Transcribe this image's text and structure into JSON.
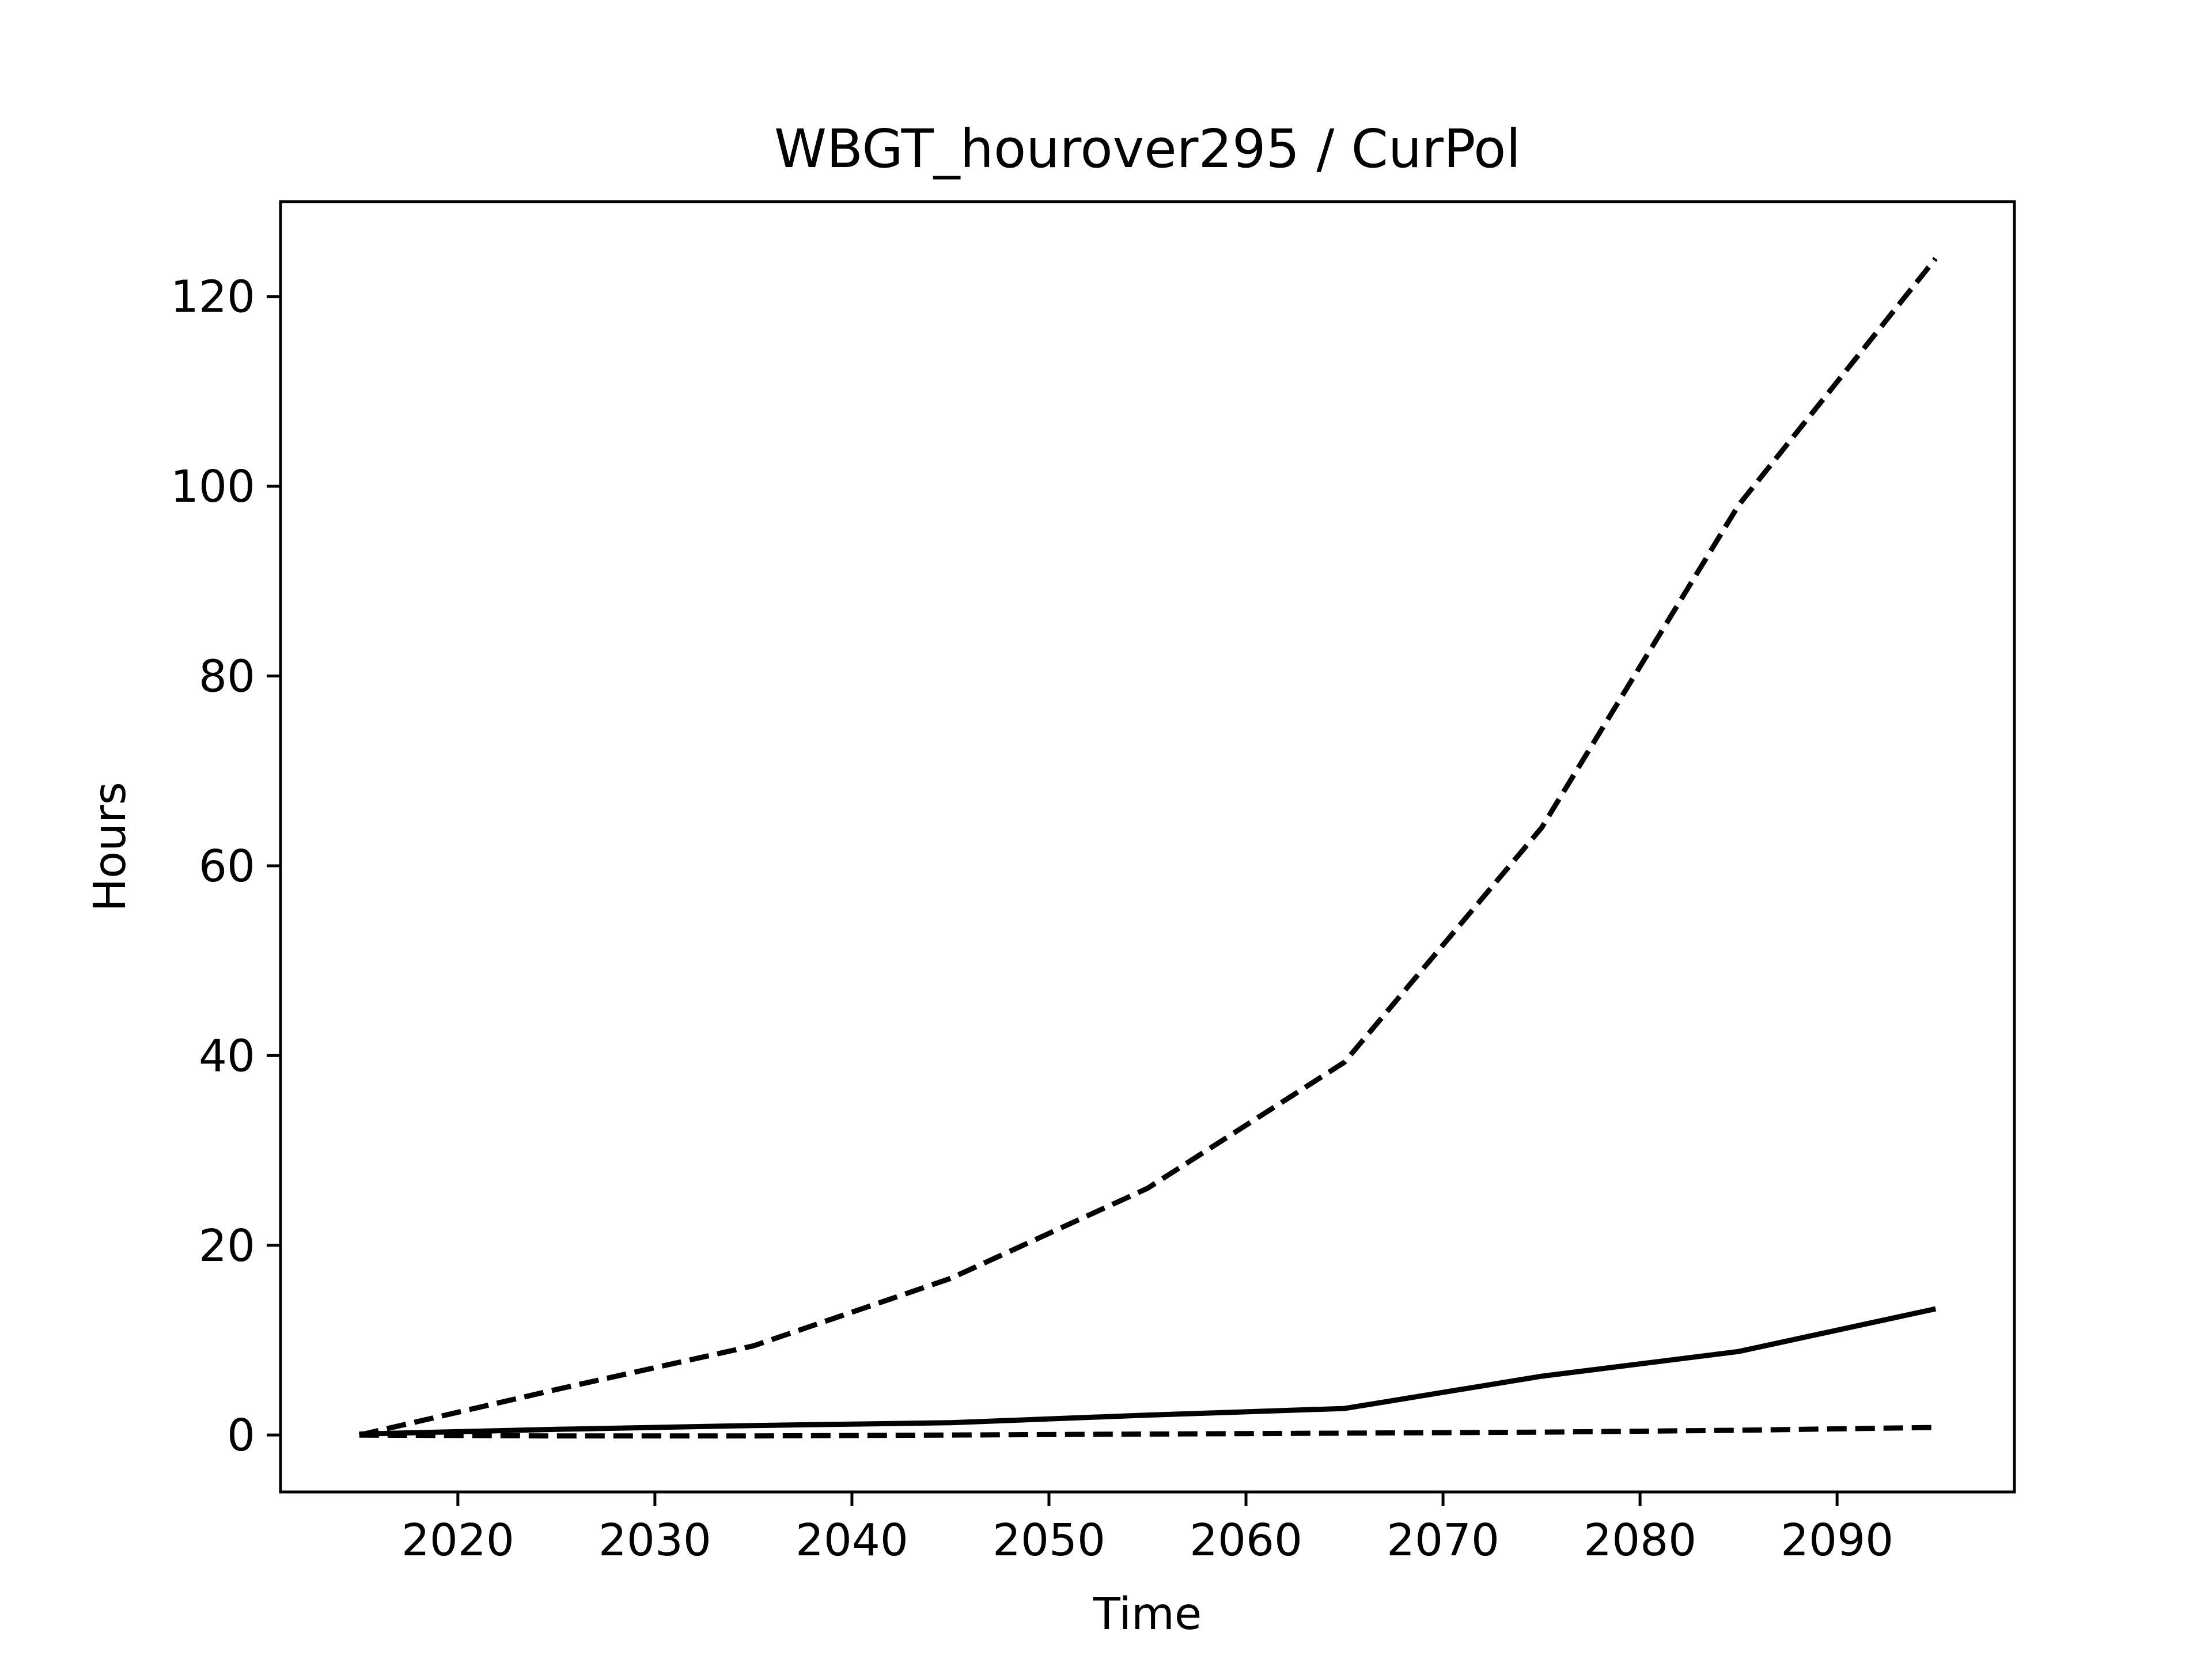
{
  "chart_data": {
    "type": "line",
    "title": "WBGT_hourover295 / CurPol",
    "xlabel": "Time",
    "ylabel": "Hours",
    "xlim": [
      2011,
      2099
    ],
    "ylim": [
      -6,
      130
    ],
    "xticks": [
      2020,
      2030,
      2040,
      2050,
      2060,
      2070,
      2080,
      2090
    ],
    "yticks": [
      0,
      20,
      40,
      60,
      80,
      100,
      120
    ],
    "grid": false,
    "legend": "none",
    "line_color": "#000000",
    "series": [
      {
        "style": "dashed",
        "x": [
          2015,
          2025,
          2035,
          2045,
          2055,
          2065,
          2075,
          2085,
          2095
        ],
        "y": [
          0.0,
          4.8,
          9.4,
          16.5,
          26.0,
          39.3,
          64.0,
          98.0,
          124.0
        ]
      },
      {
        "style": "solid",
        "x": [
          2015,
          2025,
          2035,
          2045,
          2055,
          2065,
          2075,
          2085,
          2095
        ],
        "y": [
          0.1,
          0.6,
          1.0,
          1.3,
          2.1,
          2.8,
          6.2,
          8.8,
          13.3
        ]
      },
      {
        "style": "dashed",
        "x": [
          2015,
          2025,
          2035,
          2045,
          2055,
          2065,
          2075,
          2085,
          2095
        ],
        "y": [
          0.0,
          -0.1,
          -0.1,
          0.0,
          0.1,
          0.2,
          0.3,
          0.5,
          0.8
        ]
      }
    ]
  }
}
